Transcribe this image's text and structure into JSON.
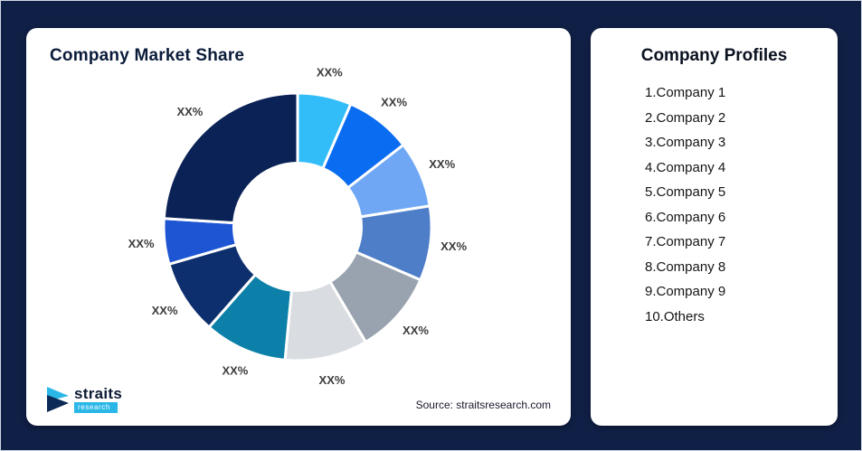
{
  "background_color": "#101f45",
  "left_card": {
    "title": "Company Market Share",
    "source": "Source: straitsresearch.com",
    "logo": {
      "name": "straits",
      "sub": "research",
      "accent_color": "#2ab7e8",
      "dark_color": "#0c2a56"
    }
  },
  "right_card": {
    "title": "Company Profiles",
    "items": [
      "1.Company 1",
      "2.Company 2",
      "3.Company 3",
      "4.Company 4",
      "5.Company 5",
      "6.Company 6",
      "7.Company 7",
      "8.Company 8",
      "9.Company 9",
      "10.Others"
    ]
  },
  "chart_data": {
    "type": "pie",
    "subtype": "donut",
    "title": "Company Market Share",
    "source": "Source: straitsresearch.com",
    "start_angle_deg": 0,
    "direction": "clockwise",
    "center": [
      300,
      220
    ],
    "outer_radius": 148,
    "inner_radius": 72,
    "label_radius": 174,
    "slice_gap_color": "#ffffff",
    "label_color": "#3c3c3c",
    "labels_shown_as": "placeholder percentages",
    "slices": [
      {
        "label": "XX%",
        "value": 6.5,
        "color": "#33bdf8",
        "name": "Company 1"
      },
      {
        "label": "XX%",
        "value": 8,
        "color": "#0a6cf0",
        "name": "Company 2"
      },
      {
        "label": "XX%",
        "value": 8,
        "color": "#6fa7f5",
        "name": "Company 3"
      },
      {
        "label": "XX%",
        "value": 9,
        "color": "#4f7ec9",
        "name": "Company 4"
      },
      {
        "label": "XX%",
        "value": 10,
        "color": "#99a3af",
        "name": "Company 5"
      },
      {
        "label": "XX%",
        "value": 10,
        "color": "#d9dce1",
        "name": "Company 6"
      },
      {
        "label": "XX%",
        "value": 10,
        "color": "#0c80a8",
        "name": "Company 7"
      },
      {
        "label": "XX%",
        "value": 9,
        "color": "#0e2f6e",
        "name": "Company 8"
      },
      {
        "label": "XX%",
        "value": 5.5,
        "color": "#1d55d3",
        "name": "Company 9"
      },
      {
        "label": "XX%",
        "value": 24,
        "color": "#0a2256",
        "name": "Others"
      }
    ]
  }
}
